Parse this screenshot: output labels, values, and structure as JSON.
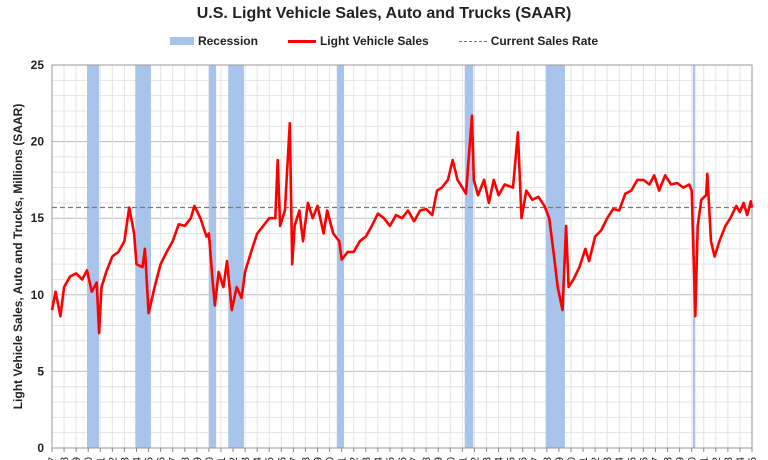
{
  "chart_data": {
    "type": "line",
    "title": "U.S. Light Vehicle Sales, Auto and Trucks (SAAR)",
    "xlabel": "",
    "ylabel": "Light Vehicle Sales, Auto and Trucks, Millions (SAAR)",
    "ylim": [
      0,
      25
    ],
    "xlim": [
      1967,
      2025
    ],
    "yticks": [
      "0",
      "5",
      "10",
      "15",
      "20",
      "25"
    ],
    "legend": {
      "placement": "top",
      "recession": "Recession",
      "line": "Light Vehicle Sales",
      "dashed": "Current Sales Rate"
    },
    "current_sales_rate": 15.7,
    "recessions": [
      [
        1969.9,
        1970.9
      ],
      [
        1973.9,
        1975.2
      ],
      [
        1980.0,
        1980.6
      ],
      [
        1981.6,
        1982.9
      ],
      [
        1990.6,
        1991.2
      ],
      [
        2001.2,
        2001.9
      ],
      [
        2007.9,
        2009.5
      ],
      [
        2020.1,
        2020.3
      ]
    ],
    "colors": {
      "line": "#ff0000",
      "recession": "#a9c4ea",
      "dashed": "#777777"
    },
    "series": [
      {
        "name": "Light Vehicle Sales",
        "points": [
          [
            1967.0,
            9.0
          ],
          [
            1967.3,
            10.2
          ],
          [
            1967.7,
            8.6
          ],
          [
            1968.0,
            10.5
          ],
          [
            1968.5,
            11.2
          ],
          [
            1969.0,
            11.4
          ],
          [
            1969.5,
            11.0
          ],
          [
            1969.9,
            11.6
          ],
          [
            1970.3,
            10.2
          ],
          [
            1970.7,
            10.8
          ],
          [
            1970.9,
            7.5
          ],
          [
            1971.1,
            10.5
          ],
          [
            1971.5,
            11.5
          ],
          [
            1972.0,
            12.5
          ],
          [
            1972.5,
            12.8
          ],
          [
            1973.0,
            13.5
          ],
          [
            1973.4,
            15.7
          ],
          [
            1973.8,
            14.0
          ],
          [
            1974.0,
            12.0
          ],
          [
            1974.5,
            11.8
          ],
          [
            1974.7,
            13.0
          ],
          [
            1975.0,
            8.8
          ],
          [
            1975.5,
            10.5
          ],
          [
            1976.0,
            12.0
          ],
          [
            1976.5,
            12.8
          ],
          [
            1977.0,
            13.5
          ],
          [
            1977.5,
            14.6
          ],
          [
            1978.0,
            14.5
          ],
          [
            1978.5,
            15.0
          ],
          [
            1978.8,
            15.8
          ],
          [
            1979.3,
            15.0
          ],
          [
            1979.8,
            13.8
          ],
          [
            1980.0,
            14.0
          ],
          [
            1980.3,
            11.0
          ],
          [
            1980.5,
            9.3
          ],
          [
            1980.8,
            11.5
          ],
          [
            1981.2,
            10.5
          ],
          [
            1981.5,
            12.2
          ],
          [
            1981.9,
            9.0
          ],
          [
            1982.3,
            10.5
          ],
          [
            1982.7,
            9.8
          ],
          [
            1983.0,
            11.5
          ],
          [
            1983.5,
            12.8
          ],
          [
            1984.0,
            14.0
          ],
          [
            1984.5,
            14.5
          ],
          [
            1985.0,
            15.0
          ],
          [
            1985.5,
            15.0
          ],
          [
            1985.7,
            18.8
          ],
          [
            1985.9,
            14.5
          ],
          [
            1986.3,
            15.5
          ],
          [
            1986.7,
            21.2
          ],
          [
            1986.9,
            12.0
          ],
          [
            1987.1,
            14.5
          ],
          [
            1987.5,
            15.5
          ],
          [
            1987.8,
            13.5
          ],
          [
            1988.2,
            16.0
          ],
          [
            1988.6,
            15.0
          ],
          [
            1989.0,
            15.8
          ],
          [
            1989.5,
            14.0
          ],
          [
            1989.8,
            15.5
          ],
          [
            1990.3,
            14.0
          ],
          [
            1990.8,
            13.5
          ],
          [
            1991.0,
            12.3
          ],
          [
            1991.5,
            12.8
          ],
          [
            1992.0,
            12.8
          ],
          [
            1992.5,
            13.5
          ],
          [
            1993.0,
            13.8
          ],
          [
            1993.5,
            14.5
          ],
          [
            1994.0,
            15.3
          ],
          [
            1994.5,
            15.0
          ],
          [
            1995.0,
            14.5
          ],
          [
            1995.5,
            15.2
          ],
          [
            1996.0,
            15.0
          ],
          [
            1996.5,
            15.5
          ],
          [
            1997.0,
            14.8
          ],
          [
            1997.5,
            15.5
          ],
          [
            1998.0,
            15.6
          ],
          [
            1998.5,
            15.2
          ],
          [
            1998.9,
            16.8
          ],
          [
            1999.3,
            17.0
          ],
          [
            1999.8,
            17.5
          ],
          [
            2000.2,
            18.8
          ],
          [
            2000.6,
            17.5
          ],
          [
            2001.0,
            17.0
          ],
          [
            2001.3,
            16.6
          ],
          [
            2001.8,
            21.7
          ],
          [
            2001.95,
            17.5
          ],
          [
            2002.3,
            16.5
          ],
          [
            2002.8,
            17.5
          ],
          [
            2003.2,
            16.0
          ],
          [
            2003.6,
            17.5
          ],
          [
            2004.0,
            16.5
          ],
          [
            2004.5,
            17.2
          ],
          [
            2005.2,
            17.0
          ],
          [
            2005.6,
            20.6
          ],
          [
            2005.9,
            15.0
          ],
          [
            2006.3,
            16.8
          ],
          [
            2006.8,
            16.2
          ],
          [
            2007.3,
            16.4
          ],
          [
            2007.8,
            15.8
          ],
          [
            2008.2,
            15.0
          ],
          [
            2008.6,
            12.5
          ],
          [
            2008.9,
            10.5
          ],
          [
            2009.3,
            9.0
          ],
          [
            2009.6,
            14.5
          ],
          [
            2009.8,
            10.5
          ],
          [
            2010.2,
            11.0
          ],
          [
            2010.7,
            11.8
          ],
          [
            2011.2,
            13.0
          ],
          [
            2011.5,
            12.2
          ],
          [
            2012.0,
            13.8
          ],
          [
            2012.5,
            14.2
          ],
          [
            2013.0,
            15.0
          ],
          [
            2013.5,
            15.6
          ],
          [
            2014.0,
            15.5
          ],
          [
            2014.5,
            16.6
          ],
          [
            2015.0,
            16.8
          ],
          [
            2015.5,
            17.5
          ],
          [
            2016.0,
            17.5
          ],
          [
            2016.5,
            17.2
          ],
          [
            2016.9,
            17.8
          ],
          [
            2017.3,
            16.8
          ],
          [
            2017.8,
            17.8
          ],
          [
            2018.3,
            17.2
          ],
          [
            2018.8,
            17.3
          ],
          [
            2019.3,
            17.0
          ],
          [
            2019.8,
            17.2
          ],
          [
            2020.0,
            16.8
          ],
          [
            2020.3,
            8.6
          ],
          [
            2020.5,
            14.5
          ],
          [
            2020.8,
            16.2
          ],
          [
            2021.2,
            16.5
          ],
          [
            2021.3,
            17.9
          ],
          [
            2021.6,
            13.5
          ],
          [
            2021.9,
            12.5
          ],
          [
            2022.3,
            13.5
          ],
          [
            2022.8,
            14.5
          ],
          [
            2023.2,
            15.0
          ],
          [
            2023.7,
            15.8
          ],
          [
            2024.0,
            15.4
          ],
          [
            2024.3,
            16.0
          ],
          [
            2024.6,
            15.2
          ],
          [
            2024.9,
            16.1
          ],
          [
            2025.0,
            15.7
          ]
        ]
      }
    ]
  }
}
